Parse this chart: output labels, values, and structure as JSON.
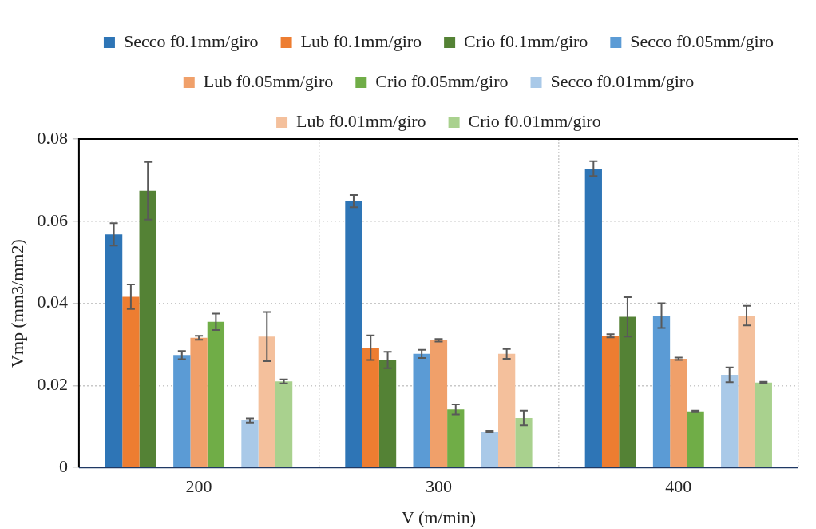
{
  "chart_data": {
    "type": "bar",
    "xlabel": "V (m/min)",
    "ylabel": "Vmp (mm3/mm2)",
    "categories": [
      "200",
      "300",
      "400"
    ],
    "ylim": [
      0,
      0.08
    ],
    "yticks": [
      0,
      0.02,
      0.04,
      0.06,
      0.08
    ],
    "grid": true,
    "legend": "top",
    "series": [
      {
        "name": "Secco f0.1mm/giro",
        "color": "#2e75b6",
        "values": [
          0.0568,
          0.0649,
          0.0728
        ],
        "errors": [
          0.0027,
          0.0015,
          0.0018
        ]
      },
      {
        "name": "Lub f0.1mm/giro",
        "color": "#ed7d31",
        "values": [
          0.0416,
          0.0292,
          0.0321
        ],
        "errors": [
          0.003,
          0.003,
          0.0004
        ]
      },
      {
        "name": "Crio f0.1mm/giro",
        "color": "#548235",
        "values": [
          0.0674,
          0.0262,
          0.0367
        ],
        "errors": [
          0.007,
          0.002,
          0.0048
        ]
      },
      {
        "name": "Secco f0.05mm/giro",
        "color": "#5b9bd5",
        "values": [
          0.0274,
          0.0277,
          0.037
        ],
        "errors": [
          0.001,
          0.001,
          0.003
        ]
      },
      {
        "name": "Lub f0.05mm/giro",
        "color": "#f0a06a",
        "values": [
          0.0316,
          0.031,
          0.0265
        ],
        "errors": [
          0.0005,
          0.0003,
          0.0003
        ]
      },
      {
        "name": "Crio f0.05mm/giro",
        "color": "#70ad47",
        "values": [
          0.0355,
          0.0142,
          0.0137
        ],
        "errors": [
          0.002,
          0.0012,
          0.0002
        ]
      },
      {
        "name": "Secco f0.01mm/giro",
        "color": "#a9c9e8",
        "values": [
          0.0115,
          0.0088,
          0.0226
        ],
        "errors": [
          0.0005,
          0.0002,
          0.0018
        ]
      },
      {
        "name": "Lub f0.01mm/giro",
        "color": "#f4c09c",
        "values": [
          0.0319,
          0.0277,
          0.037
        ],
        "errors": [
          0.006,
          0.0012,
          0.0024
        ]
      },
      {
        "name": "Crio f0.01mm/giro",
        "color": "#a9d18e",
        "values": [
          0.021,
          0.0121,
          0.0207
        ],
        "errors": [
          0.0005,
          0.0018,
          0.0002
        ]
      }
    ]
  }
}
